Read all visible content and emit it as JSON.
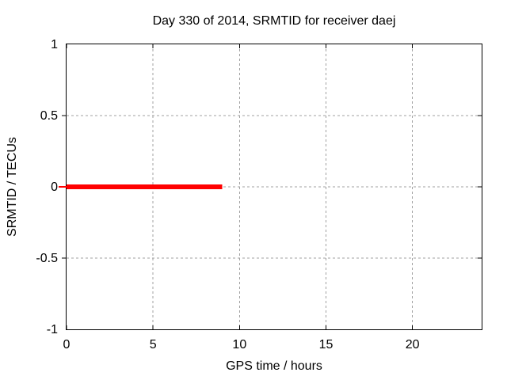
{
  "window": {
    "background": "#ffffff"
  },
  "chart_data": {
    "type": "line",
    "title": "Day 330 of 2014, SRMTID for receiver daej",
    "xlabel": "GPS time / hours",
    "ylabel": "SRMTID / TECUs",
    "xlim": [
      0,
      24
    ],
    "ylim": [
      -1,
      1
    ],
    "xticks": [
      0,
      5,
      10,
      15,
      20
    ],
    "yticks": [
      1,
      0.5,
      0,
      -0.5,
      -1
    ],
    "grid": true,
    "legend": "none",
    "series": [
      {
        "name": "SRMTID",
        "type": "line",
        "color": "#ff0000",
        "linewidth": 6,
        "x": [
          0,
          9
        ],
        "y": [
          0,
          0
        ]
      }
    ],
    "zero_tick_color": "#ff0000",
    "colors": {
      "axis": "#000000",
      "grid": "#a0a0a0",
      "text": "#000000",
      "background": "#ffffff"
    }
  }
}
